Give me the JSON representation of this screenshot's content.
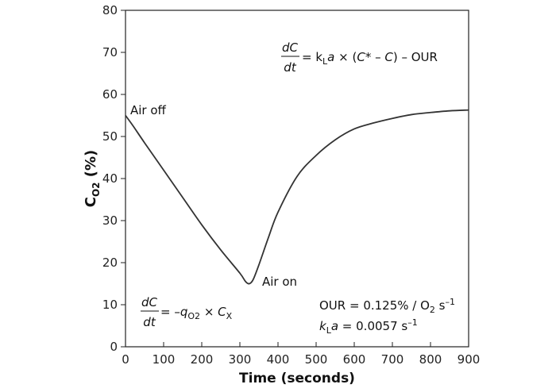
{
  "chart_data": {
    "type": "line",
    "xlabel": "Time (seconds)",
    "ylabel": {
      "main": "C",
      "sub": "O2",
      "suffix": " (%)"
    },
    "xlim": [
      0,
      900
    ],
    "ylim": [
      0,
      80
    ],
    "x_ticks": [
      0,
      100,
      200,
      300,
      400,
      500,
      600,
      700,
      800,
      900
    ],
    "y_ticks": [
      0,
      10,
      20,
      30,
      40,
      50,
      60,
      70,
      80
    ],
    "grid": false,
    "legend": "none",
    "series": [
      {
        "x": [
          0,
          20,
          50,
          100,
          150,
          200,
          250,
          300,
          315,
          325,
          335,
          350,
          375,
          400,
          450,
          500,
          550,
          600,
          650,
          700,
          750,
          800,
          850,
          900
        ],
        "y": [
          55,
          52.5,
          48.5,
          42,
          35.5,
          29,
          23,
          17.5,
          15.5,
          15,
          16,
          19.5,
          26,
          32,
          40.5,
          45.5,
          49.2,
          51.8,
          53.2,
          54.3,
          55.2,
          55.7,
          56.1,
          56.3
        ]
      }
    ],
    "annotations": {
      "air_off": "Air off",
      "air_on": "Air on",
      "eq_top": {
        "num": "dC",
        "den": "dt",
        "rhs_pre": " = k",
        "rhs_sub": "L",
        "rhs_a": "a",
        "rhs_mid": " × (",
        "rhs_cstar": "C*",
        "rhs_minus": " – ",
        "rhs_c": "C",
        "rhs_end": ") – OUR"
      },
      "eq_bottom": {
        "num": "dC",
        "den": "dt",
        "rhs_pre": " = –",
        "rhs_q": "q",
        "rhs_qsub": "O2",
        "rhs_times": " × ",
        "rhs_c": "C",
        "rhs_csub": "X"
      },
      "our": {
        "pre": "OUR = 0.125% / O",
        "sub": "2",
        "post": " s",
        "sup": "–1"
      },
      "kla": {
        "k": "k",
        "ksub": "L",
        "a": "a",
        "post": " = 0.0057 s",
        "sup": "–1"
      }
    },
    "line_color": "#333333"
  }
}
